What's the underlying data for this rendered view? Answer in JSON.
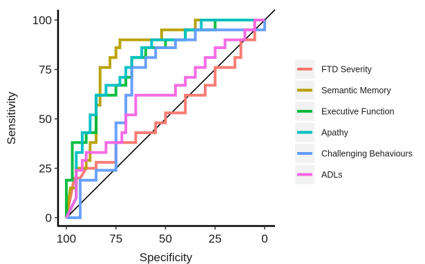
{
  "chart_data": {
    "type": "line",
    "xlabel": "Specificity",
    "ylabel": "Sensitivity",
    "xlim": [
      100,
      0
    ],
    "ylim": [
      0,
      100
    ],
    "x_ticks": [
      100,
      75,
      50,
      25,
      0
    ],
    "y_ticks": [
      0,
      25,
      50,
      75,
      100
    ],
    "grid": false,
    "legend_position": "right",
    "reference_line": {
      "from": [
        100,
        0
      ],
      "to": [
        0,
        100
      ],
      "color": "#000000"
    },
    "series": [
      {
        "name": "FTD Severity",
        "color": "#F8766D",
        "points": [
          [
            100,
            0
          ],
          [
            96,
            20
          ],
          [
            93,
            20
          ],
          [
            90,
            25
          ],
          [
            85,
            25
          ],
          [
            85,
            28
          ],
          [
            75,
            28
          ],
          [
            75,
            38
          ],
          [
            70,
            38
          ],
          [
            65,
            38
          ],
          [
            65,
            43
          ],
          [
            55,
            43
          ],
          [
            55,
            48
          ],
          [
            50,
            48
          ],
          [
            50,
            53
          ],
          [
            40,
            53
          ],
          [
            40,
            62
          ],
          [
            30,
            62
          ],
          [
            30,
            67
          ],
          [
            25,
            67
          ],
          [
            25,
            76
          ],
          [
            15,
            76
          ],
          [
            15,
            81
          ],
          [
            12,
            81
          ],
          [
            12,
            90
          ],
          [
            5,
            90
          ],
          [
            5,
            100
          ],
          [
            0,
            100
          ]
        ]
      },
      {
        "name": "Semantic Memory",
        "color": "#B79F00",
        "points": [
          [
            100,
            0
          ],
          [
            98,
            15
          ],
          [
            95,
            15
          ],
          [
            95,
            25
          ],
          [
            90,
            25
          ],
          [
            90,
            29
          ],
          [
            88,
            29
          ],
          [
            88,
            38
          ],
          [
            85,
            38
          ],
          [
            85,
            57
          ],
          [
            83,
            57
          ],
          [
            83,
            76
          ],
          [
            78,
            76
          ],
          [
            78,
            81
          ],
          [
            75,
            81
          ],
          [
            75,
            86
          ],
          [
            73,
            86
          ],
          [
            73,
            90
          ],
          [
            52,
            90
          ],
          [
            52,
            95
          ],
          [
            35,
            95
          ],
          [
            35,
            100
          ],
          [
            0,
            100
          ]
        ]
      },
      {
        "name": "Executive Function",
        "color": "#00BA38",
        "points": [
          [
            100,
            0
          ],
          [
            100,
            19
          ],
          [
            97,
            19
          ],
          [
            97,
            38
          ],
          [
            90,
            38
          ],
          [
            90,
            43
          ],
          [
            85,
            43
          ],
          [
            85,
            62
          ],
          [
            75,
            62
          ],
          [
            75,
            67
          ],
          [
            70,
            67
          ],
          [
            70,
            71
          ],
          [
            67,
            71
          ],
          [
            67,
            81
          ],
          [
            60,
            81
          ],
          [
            60,
            86
          ],
          [
            50,
            86
          ],
          [
            50,
            90
          ],
          [
            40,
            90
          ],
          [
            40,
            95
          ],
          [
            25,
            95
          ],
          [
            25,
            100
          ],
          [
            0,
            100
          ]
        ]
      },
      {
        "name": "Apathy",
        "color": "#00BFC4",
        "points": [
          [
            100,
            0
          ],
          [
            95,
            10
          ],
          [
            95,
            33
          ],
          [
            92,
            33
          ],
          [
            92,
            43
          ],
          [
            88,
            43
          ],
          [
            88,
            52
          ],
          [
            85,
            52
          ],
          [
            85,
            62
          ],
          [
            80,
            62
          ],
          [
            80,
            67
          ],
          [
            73,
            67
          ],
          [
            73,
            71
          ],
          [
            70,
            71
          ],
          [
            70,
            76
          ],
          [
            67,
            76
          ],
          [
            67,
            81
          ],
          [
            62,
            81
          ],
          [
            62,
            86
          ],
          [
            57,
            86
          ],
          [
            57,
            90
          ],
          [
            40,
            90
          ],
          [
            40,
            95
          ],
          [
            32,
            95
          ],
          [
            32,
            100
          ],
          [
            0,
            100
          ]
        ]
      },
      {
        "name": "Challenging Behaviours",
        "color": "#619CFF",
        "points": [
          [
            100,
            0
          ],
          [
            93,
            0
          ],
          [
            93,
            19
          ],
          [
            85,
            19
          ],
          [
            85,
            24
          ],
          [
            75,
            24
          ],
          [
            75,
            48
          ],
          [
            70,
            48
          ],
          [
            70,
            62
          ],
          [
            67,
            62
          ],
          [
            67,
            76
          ],
          [
            60,
            76
          ],
          [
            60,
            81
          ],
          [
            55,
            81
          ],
          [
            55,
            86
          ],
          [
            45,
            86
          ],
          [
            45,
            90
          ],
          [
            35,
            90
          ],
          [
            35,
            95
          ],
          [
            0,
            95
          ],
          [
            0,
            100
          ]
        ]
      },
      {
        "name": "ADLs",
        "color": "#F564E3",
        "points": [
          [
            100,
            0
          ],
          [
            95,
            10
          ],
          [
            95,
            24
          ],
          [
            92,
            24
          ],
          [
            92,
            29
          ],
          [
            90,
            29
          ],
          [
            90,
            33
          ],
          [
            80,
            33
          ],
          [
            80,
            38
          ],
          [
            72,
            38
          ],
          [
            72,
            43
          ],
          [
            70,
            43
          ],
          [
            70,
            52
          ],
          [
            65,
            52
          ],
          [
            65,
            62
          ],
          [
            45,
            62
          ],
          [
            45,
            67
          ],
          [
            40,
            67
          ],
          [
            40,
            71
          ],
          [
            35,
            71
          ],
          [
            35,
            76
          ],
          [
            30,
            76
          ],
          [
            30,
            81
          ],
          [
            25,
            81
          ],
          [
            25,
            86
          ],
          [
            20,
            86
          ],
          [
            20,
            90
          ],
          [
            10,
            90
          ],
          [
            10,
            95
          ],
          [
            5,
            95
          ],
          [
            5,
            100
          ],
          [
            0,
            100
          ]
        ]
      }
    ]
  }
}
